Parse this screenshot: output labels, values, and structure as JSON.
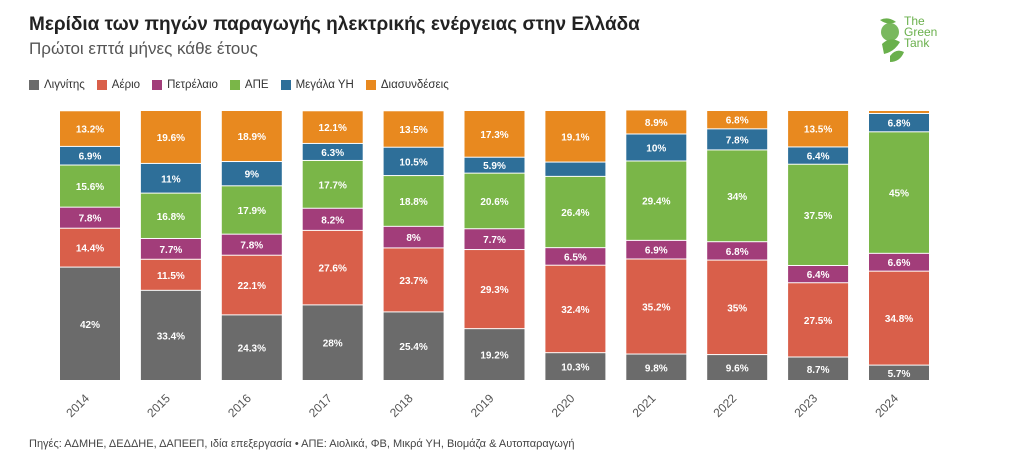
{
  "title": "Μερίδια των πηγών παραγωγής ηλεκτρικής ενέργειας στην Ελλάδα",
  "subtitle": "Πρώτοι επτά μήνες κάθε έτους",
  "logo": {
    "line1": "The",
    "line2": "Green",
    "line3": "Tank",
    "icon": "green-tank-logo-icon"
  },
  "source": "Πηγές: ΑΔΜΗΕ, ΔΕΔΔΗΕ, ΔΑΠΕΕΠ, ιδία επεξεργασία • ΑΠΕ: Αιολικά, ΦΒ, Μικρά ΥΗ, Βιομάζα & Αυτοπαραγωγή",
  "chart_data": {
    "type": "bar",
    "stacked": true,
    "categories": [
      "2014",
      "2015",
      "2016",
      "2017",
      "2018",
      "2019",
      "2020",
      "2021",
      "2022",
      "2023",
      "2024"
    ],
    "ylim": [
      0,
      100
    ],
    "legend_position": "top-left",
    "grid": false,
    "series": [
      {
        "name": "Λιγνίτης",
        "color": "#6b6b6b",
        "values": [
          42,
          33.4,
          24.3,
          28,
          25.4,
          19.2,
          10.3,
          9.8,
          9.6,
          8.7,
          5.7
        ],
        "labels": [
          "42%",
          "33.4%",
          "24.3%",
          "28%",
          "25.4%",
          "19.2%",
          "10.3%",
          "9.8%",
          "9.6%",
          "8.7%",
          "5.7%"
        ]
      },
      {
        "name": "Αέριο",
        "color": "#d95f4a",
        "values": [
          14.4,
          11.5,
          22.1,
          27.6,
          23.7,
          29.3,
          32.4,
          35.2,
          35,
          27.5,
          34.8
        ],
        "labels": [
          "14.4%",
          "11.5%",
          "22.1%",
          "27.6%",
          "23.7%",
          "29.3%",
          "32.4%",
          "35.2%",
          "35%",
          "27.5%",
          "34.8%"
        ]
      },
      {
        "name": "Πετρέλαιο",
        "color": "#a23d7a",
        "values": [
          7.8,
          7.7,
          7.8,
          8.2,
          8,
          7.7,
          6.5,
          6.9,
          6.8,
          6.4,
          6.6
        ],
        "labels": [
          "7.8%",
          "7.7%",
          "7.8%",
          "8.2%",
          "8%",
          "7.7%",
          "6.5%",
          "6.9%",
          "6.8%",
          "6.4%",
          "6.6%"
        ]
      },
      {
        "name": "ΑΠΕ",
        "color": "#7ab648",
        "values": [
          15.6,
          16.8,
          17.9,
          17.7,
          18.8,
          20.6,
          26.4,
          29.4,
          34,
          37.5,
          45
        ],
        "labels": [
          "15.6%",
          "16.8%",
          "17.9%",
          "17.7%",
          "18.8%",
          "20.6%",
          "26.4%",
          "29.4%",
          "34%",
          "37.5%",
          "45%"
        ]
      },
      {
        "name": "Μεγάλα ΥΗ",
        "color": "#2e6f99",
        "values": [
          6.9,
          11,
          9,
          6.3,
          10.5,
          5.9,
          5.3,
          10,
          7.8,
          6.4,
          6.8
        ],
        "labels": [
          "6.9%",
          "11%",
          "9%",
          "6.3%",
          "10.5%",
          "5.9%",
          "",
          "10%",
          "7.8%",
          "6.4%",
          "6.8%"
        ]
      },
      {
        "name": "Διασυνδέσεις",
        "color": "#e8891f",
        "values": [
          13.2,
          19.6,
          18.9,
          12.1,
          13.5,
          17.3,
          19.1,
          8.9,
          6.8,
          13.5,
          1.1
        ],
        "labels": [
          "13.2%",
          "19.6%",
          "18.9%",
          "12.1%",
          "13.5%",
          "17.3%",
          "19.1%",
          "8.9%",
          "6.8%",
          "13.5%",
          ""
        ]
      }
    ]
  }
}
